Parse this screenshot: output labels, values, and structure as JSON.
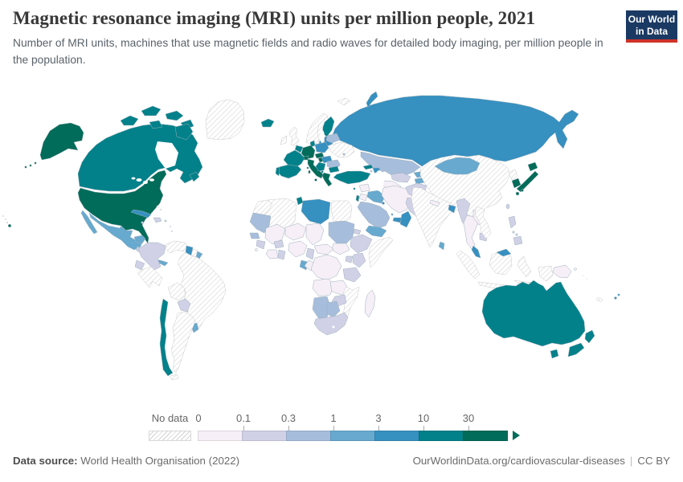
{
  "header": {
    "title": "Magnetic resonance imaging (MRI) units per million people, 2021",
    "subtitle": "Number of MRI units, machines that use magnetic fields and radio waves for detailed body imaging, per million people in the population.",
    "logo": {
      "line1": "Our World",
      "line2": "in Data",
      "bg_color": "#1b3a63",
      "accent_color": "#cf3228"
    }
  },
  "legend": {
    "no_data_label": "No data",
    "ticks": [
      "0",
      "0.1",
      "0.3",
      "1",
      "3",
      "10",
      "30"
    ]
  },
  "footer": {
    "source_label": "Data source:",
    "source_text": " World Health Organisation (2022)",
    "link": "OurWorldinData.org/cardiovascular-diseases",
    "separator": "|",
    "license": "CC BY"
  },
  "chart_data": {
    "type": "choropleth_map",
    "title": "Magnetic resonance imaging (MRI) units per million people, 2021",
    "unit": "MRI units per million people",
    "year": "2021",
    "color_scale": {
      "bin_keys": [
        "0-0.1",
        "0.1-0.3",
        "0.3-1",
        "1-3",
        "3-10",
        "10-30",
        "30+"
      ],
      "colors": [
        "#f6eff7",
        "#d0d1e6",
        "#a6bddb",
        "#67a9cf",
        "#3690c0",
        "#02818a",
        "#016c59"
      ],
      "no_data_style": "diagonal-hatch"
    },
    "countries": {
      "United States": "30+",
      "Canada": "10-30",
      "Greenland": "No data",
      "Mexico": "1-3",
      "Guatemala": "0.1-0.3",
      "Panama": "1-3",
      "Cuba": "3-10",
      "Jamaica": "0.1-0.3",
      "Dominican Republic": "0.1-0.3",
      "Haiti": "0.1-0.3",
      "Puerto Rico": "0.1-0.3",
      "Bahamas": "No data",
      "Colombia": "0.1-0.3",
      "Venezuela": "No data",
      "Guyana": "3-10",
      "Suriname": "No data",
      "French Guiana": "1-3",
      "Ecuador": "0.1-0.3",
      "Peru": "No data",
      "Brazil": "No data",
      "Bolivia": "No data",
      "Paraguay": "0.1-0.3",
      "Uruguay": "1-3",
      "Argentina": "No data",
      "Chile": "10-30",
      "Iceland": "10-30",
      "United Kingdom": "No data",
      "Ireland": "No data",
      "Norway": "No data",
      "Sweden": "No data",
      "Finland": "10-30",
      "Denmark": "10-30",
      "Estonia": "3-10",
      "Latvia": "3-10",
      "Lithuania": "3-10",
      "Poland": "3-10",
      "Germany": "30+",
      "Netherlands": "10-30",
      "Belgium": "10-30",
      "France": "10-30",
      "Spain": "10-30",
      "Portugal": "10-30",
      "Italy": "30+",
      "Switzerland": "30+",
      "Austria": "30+",
      "Czechia": "30+",
      "Slovakia": "3-10",
      "Hungary": "3-10",
      "Romania": "0.3-1",
      "Serbia": "10-30",
      "Bulgaria": "10-30",
      "Albania": "10-30",
      "Greece": "30+",
      "Ukraine": "No data",
      "Belarus": "0.3-1",
      "Moldova": "0.3-1",
      "Russia": "3-10",
      "Kazakhstan": "0.3-1",
      "Uzbekistan": "0.1-0.3",
      "Turkmenistan": "0-0.1",
      "Kyrgyzstan": "1-3",
      "Tajikistan": "1-3",
      "Georgia": "10-30",
      "Azerbaijan": "3-10",
      "Armenia": "0.1-0.3",
      "Turkey": "10-30",
      "Cyprus": "10-30",
      "Syria": "0-0.1",
      "Israel": "10-30",
      "Jordan": "0-0.1",
      "Iraq": "1-3",
      "Iran": "0-0.1",
      "Afghanistan": "0.1-0.3",
      "Pakistan": "0.1-0.3",
      "Saudi Arabia": "0.3-1",
      "Kuwait": "3-10",
      "Qatar": "1-3",
      "United Arab Emirates": "3-10",
      "Oman": "3-10",
      "Yemen": "1-3",
      "India": "No data",
      "Nepal": "0-0.1",
      "Bangladesh": "3-10",
      "Sri Lanka": "1-3",
      "Myanmar": "0.1-0.3",
      "Thailand": "0-0.1",
      "Laos": "0-0.1",
      "Cambodia": "0.1-0.3",
      "Vietnam": "No data",
      "Malaysia": "3-10",
      "Indonesia": "No data",
      "Philippines": "0.1-0.3",
      "China": "No data",
      "Mongolia": "1-3",
      "North Korea": "No data",
      "South Korea": "30+",
      "Japan": "30+",
      "Taiwan": "0.1-0.3",
      "Morocco": "No data",
      "Algeria": "No data",
      "Tunisia": "10-30",
      "Libya": "3-10",
      "Egypt": "No data",
      "Mauritania": "0.3-1",
      "Senegal": "0.3-1",
      "Guinea": "0.1-0.3",
      "Sierra Leone": "0-0.1",
      "Mali": "0-0.1",
      "Burkina Faso": "0.1-0.3",
      "Cote d'Ivoire": "0-0.1",
      "Ghana": "0.1-0.3",
      "Nigeria": "0-0.1",
      "Niger": "0-0.1",
      "Chad": "0-0.1",
      "Sudan": "0.3-1",
      "South Sudan": "0-0.1",
      "Eritrea": "0.1-0.3",
      "Ethiopia": "0.1-0.3",
      "Somalia": "No data",
      "Uganda": "0.1-0.3",
      "Kenya": "0.1-0.3",
      "Cameroon": "0.1-0.3",
      "Central African Republic": "0-0.1",
      "Gabon": "1-3",
      "Congo": "0-0.1",
      "Democratic Republic of Congo": "0-0.1",
      "Tanzania": "0.1-0.3",
      "Angola": "0-0.1",
      "Zambia": "0-0.1",
      "Malawi": "0.1-0.3",
      "Mozambique": "No data",
      "Zimbabwe": "0.1-0.3",
      "Namibia": "0.3-1",
      "Botswana": "0.3-1",
      "South Africa": "0.1-0.3",
      "Madagascar": "0-0.1",
      "Australia": "10-30",
      "New Zealand": "10-30",
      "Papua New Guinea": "0-0.1",
      "Fiji": "3-10",
      "New Caledonia": "No data"
    }
  }
}
